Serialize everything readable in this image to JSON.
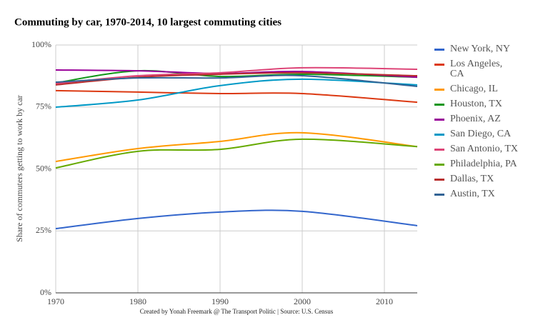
{
  "chart_data": {
    "type": "line",
    "title": "Commuting by car, 1970-2014, 10 largest commuting cities",
    "y_label": "Share of commuters getting to work by car",
    "note": "Created by Yonah Freemark @ The Transport Politic | Source: U.S. Census",
    "x": [
      1970,
      1980,
      1990,
      2000,
      2014
    ],
    "xlim": [
      1970,
      2014
    ],
    "xticks": [
      1970,
      1980,
      1990,
      2000,
      2010
    ],
    "ylim": [
      0,
      100
    ],
    "yticks": [
      {
        "value": 0,
        "label": "0%"
      },
      {
        "value": 25,
        "label": "25%"
      },
      {
        "value": 50,
        "label": "50%"
      },
      {
        "value": 75,
        "label": "75%"
      },
      {
        "value": 100,
        "label": "100%"
      }
    ],
    "grid": true,
    "legend": "right",
    "series": [
      {
        "name": "New York, NY",
        "color": "#3366cc",
        "values": [
          25.9,
          30,
          32.6,
          32.9,
          27.1
        ]
      },
      {
        "name": "Los Angeles, CA",
        "color": "#dc3912",
        "values": [
          81.6,
          81,
          80.4,
          80.4,
          76.9
        ]
      },
      {
        "name": "Chicago, IL",
        "color": "#ff9900",
        "values": [
          53,
          58.2,
          61.1,
          64.6,
          59
        ]
      },
      {
        "name": "Houston, TX",
        "color": "#109618",
        "values": [
          84.7,
          89.6,
          87.3,
          88.2,
          87
        ]
      },
      {
        "name": "Phoenix, AZ",
        "color": "#990099",
        "values": [
          89.9,
          89.6,
          88.5,
          89.3,
          87
        ]
      },
      {
        "name": "San Diego, CA",
        "color": "#0099c6",
        "values": [
          74.9,
          77.8,
          83.6,
          86.2,
          83.9
        ]
      },
      {
        "name": "San Antonio, TX",
        "color": "#dd4477",
        "values": [
          84.4,
          87.6,
          88.8,
          90.8,
          90.2
        ]
      },
      {
        "name": "Philadelphia, PA",
        "color": "#66aa00",
        "values": [
          50.4,
          57.1,
          57.9,
          62,
          59
        ]
      },
      {
        "name": "Dallas, TX",
        "color": "#b82e2e",
        "values": [
          83.9,
          87,
          88.2,
          88.8,
          87.6
        ]
      },
      {
        "name": "Austin, TX",
        "color": "#316395",
        "values": [
          85,
          86.7,
          86.7,
          87.6,
          83.3
        ]
      }
    ]
  }
}
